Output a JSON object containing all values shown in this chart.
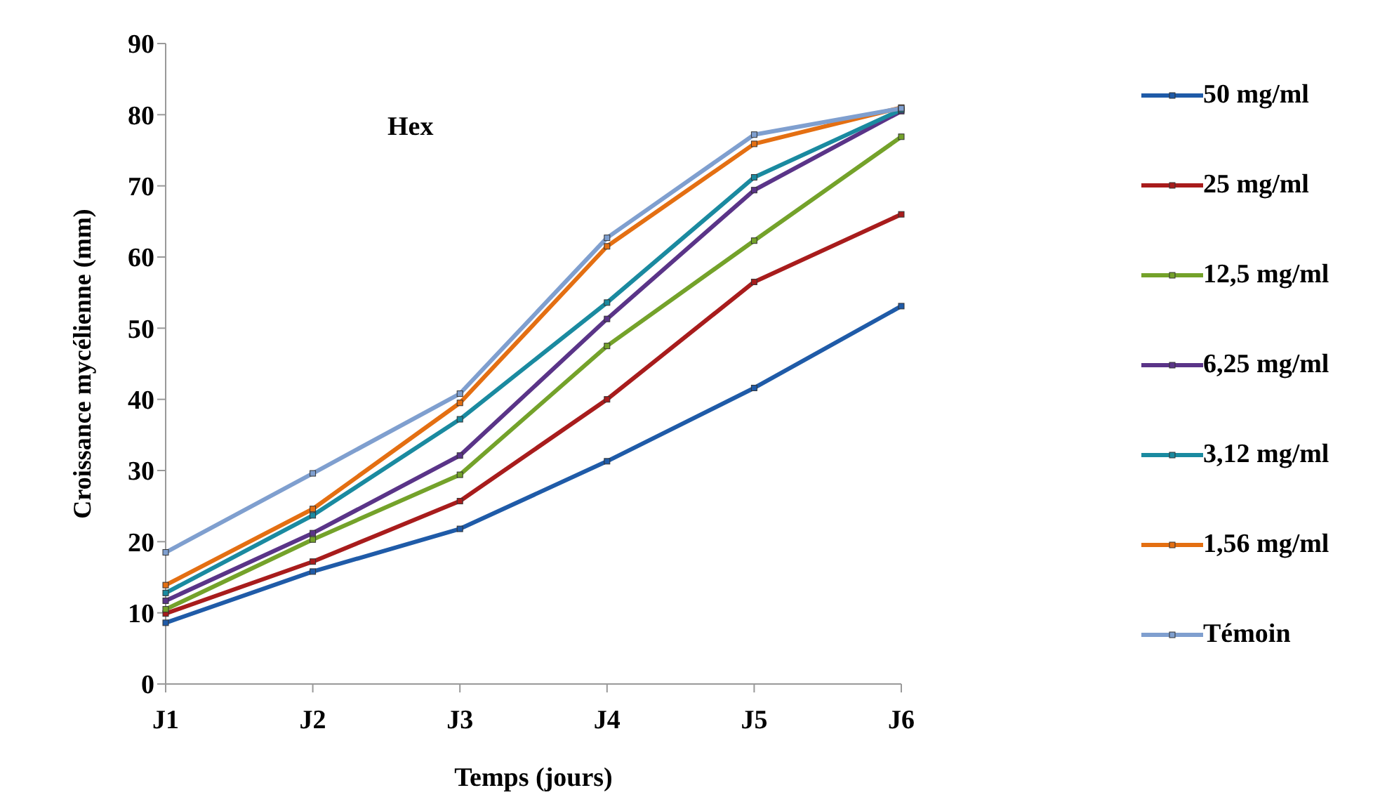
{
  "chart_data": {
    "type": "line",
    "title": "Hex",
    "xlabel": "Temps (jours)",
    "ylabel": "Croissance mycélienne (mm)",
    "categories": [
      "J1",
      "J2",
      "J3",
      "J4",
      "J5",
      "J6"
    ],
    "series": [
      {
        "name": "50 mg/ml",
        "color": "#1f5ba8",
        "values": [
          8.6,
          15.8,
          21.8,
          31.3,
          41.6,
          53.1
        ]
      },
      {
        "name": "25 mg/ml",
        "color": "#a81c1c",
        "values": [
          9.9,
          17.2,
          25.7,
          40.0,
          56.5,
          66.0
        ]
      },
      {
        "name": "12,5 mg/ml",
        "color": "#74a22a",
        "values": [
          10.5,
          20.3,
          29.4,
          47.5,
          62.3,
          76.9
        ]
      },
      {
        "name": "6,25 mg/ml",
        "color": "#5a3488",
        "values": [
          11.7,
          21.2,
          32.1,
          51.3,
          69.4,
          80.5
        ]
      },
      {
        "name": "3,12 mg/ml",
        "color": "#1a8aa0",
        "values": [
          12.8,
          23.7,
          37.2,
          53.6,
          71.2,
          80.7
        ]
      },
      {
        "name": "1,56 mg/ml",
        "color": "#e46f12",
        "values": [
          13.9,
          24.6,
          39.5,
          61.5,
          75.9,
          81.0
        ]
      },
      {
        "name": "Témoin",
        "color": "#7f9fcf",
        "values": [
          18.5,
          29.6,
          40.8,
          62.7,
          77.2,
          80.9
        ]
      }
    ],
    "ylim": [
      0,
      90
    ],
    "yticks": [
      0,
      10,
      20,
      30,
      40,
      50,
      60,
      70,
      80,
      90
    ],
    "grid": false,
    "legend": "right",
    "marker": "square",
    "line_style": "solid"
  }
}
